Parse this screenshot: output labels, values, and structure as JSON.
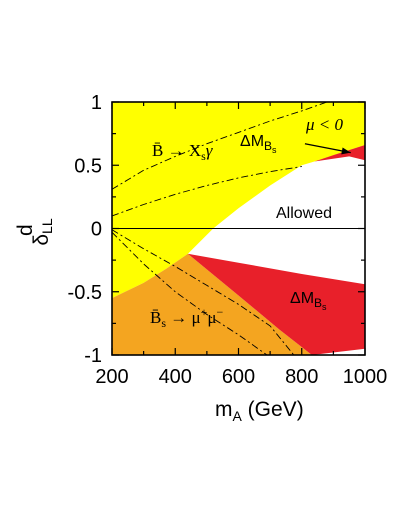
{
  "chart_data": {
    "type": "area",
    "xlabel": "m",
    "xlabel_sub": "A",
    "xlabel_unit": " (GeV)",
    "ylabel": "δ",
    "ylabel_sup": "d",
    "ylabel_sub": "LL",
    "xlim": [
      200,
      1000
    ],
    "ylim": [
      -1,
      1
    ],
    "xticks": [
      200,
      400,
      600,
      800,
      1000
    ],
    "yticks": [
      1,
      0.5,
      0,
      -0.5,
      -1
    ],
    "ytick_labels": [
      "1",
      "0.5",
      "0",
      "-0.5",
      "-1"
    ],
    "regions": [
      {
        "name": "Bs_to_mumu_excluded",
        "color": "#f4a520",
        "boundary_upper": [
          [
            200,
            -0.55
          ],
          [
            300,
            -0.43
          ],
          [
            370,
            -0.32
          ],
          [
            440,
            -0.2
          ]
        ],
        "boundary_lower_right": [
          [
            440,
            -0.2
          ],
          [
            600,
            -0.53
          ],
          [
            730,
            -0.8
          ],
          [
            832,
            -1.0
          ]
        ]
      },
      {
        "name": "DeltaMBs_excluded_lower",
        "color": "#e8202a",
        "boundary_upper": [
          [
            440,
            -0.2
          ],
          [
            600,
            -0.27
          ],
          [
            800,
            -0.36
          ],
          [
            1000,
            -0.44
          ]
        ],
        "boundary_lower": [
          [
            440,
            -0.2
          ],
          [
            600,
            -0.53
          ],
          [
            730,
            -0.8
          ],
          [
            832,
            -1.0
          ],
          [
            1000,
            -0.95
          ]
        ]
      },
      {
        "name": "DeltaMBs_excluded_upper",
        "color": "#e8202a",
        "boundary": [
          [
            840,
            0.53
          ],
          [
            900,
            0.58
          ],
          [
            1000,
            0.66
          ],
          [
            1000,
            0.54
          ],
          [
            950,
            0.57
          ]
        ]
      },
      {
        "name": "bsgamma_excluded",
        "color": "#ffff00",
        "boundary_lower": [
          [
            200,
            -0.55
          ],
          [
            300,
            -0.43
          ],
          [
            370,
            -0.32
          ],
          [
            440,
            -0.2
          ],
          [
            520,
            0.0
          ],
          [
            600,
            0.16
          ],
          [
            700,
            0.34
          ],
          [
            800,
            0.5
          ],
          [
            840,
            0.53
          ]
        ]
      },
      {
        "name": "Allowed",
        "color": "#ffffff"
      }
    ],
    "dashed_curves": [
      {
        "name": "bsgamma_dashed_upper",
        "points": [
          [
            200,
            0.31
          ],
          [
            300,
            0.46
          ],
          [
            400,
            0.57
          ],
          [
            500,
            0.67
          ],
          [
            600,
            0.76
          ],
          [
            700,
            0.85
          ],
          [
            800,
            0.93
          ],
          [
            880,
            1.0
          ]
        ]
      },
      {
        "name": "bsgamma_dashed_lower",
        "points": [
          [
            200,
            0.1
          ],
          [
            300,
            0.19
          ],
          [
            400,
            0.27
          ],
          [
            500,
            0.34
          ],
          [
            600,
            0.4
          ],
          [
            700,
            0.45
          ],
          [
            800,
            0.49
          ]
        ]
      },
      {
        "name": "mumu_dashed_upper",
        "points": [
          [
            200,
            -0.01
          ],
          [
            300,
            -0.16
          ],
          [
            400,
            -0.3
          ],
          [
            500,
            -0.45
          ],
          [
            600,
            -0.6
          ],
          [
            700,
            -0.77
          ],
          [
            775,
            -1.0
          ]
        ]
      },
      {
        "name": "mumu_dashed_lower",
        "points": [
          [
            200,
            -0.03
          ],
          [
            300,
            -0.28
          ],
          [
            400,
            -0.5
          ],
          [
            500,
            -0.68
          ],
          [
            600,
            -0.84
          ],
          [
            690,
            -1.0
          ]
        ]
      }
    ],
    "annotations": {
      "bsgamma": "B̄ → Xsγ",
      "dmbs_top": "ΔMBs",
      "mu_neg": "μ < 0",
      "allowed": "Allowed",
      "dmbs_bottom": "ΔMBs",
      "bsmumu": "B̄s → μ⁺μ⁻"
    },
    "ann_parts": {
      "bsgamma_B": "B̄",
      "bsgamma_arrow": " → X",
      "bsgamma_s": "s",
      "bsgamma_gamma": "γ",
      "dm_delta": "ΔM",
      "dm_B": "B",
      "dm_s": "s",
      "mu_text": "μ < 0",
      "allowed_text": "Allowed",
      "mumu_B": "B̄",
      "mumu_s": "s",
      "mumu_arrow": " → μ",
      "mumu_plus": "+",
      "mumu_mu": "μ",
      "mumu_minus": "−"
    },
    "colors": {
      "yellow": "#ffff00",
      "orange": "#f4a520",
      "red": "#e8202a",
      "allowed": "#ffffff",
      "axis": "#000000"
    }
  }
}
